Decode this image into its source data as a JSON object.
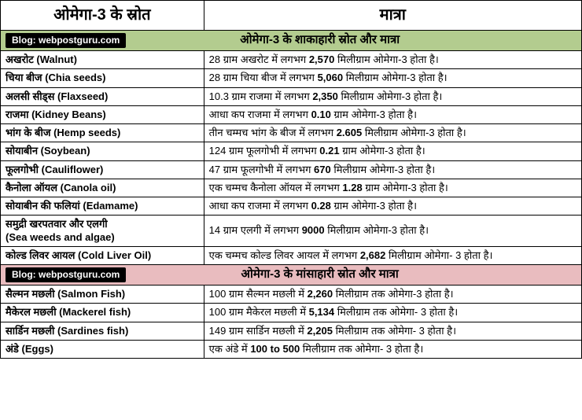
{
  "header": {
    "col1": "ओमेगा-3 के स्रोत",
    "col2": "मात्रा"
  },
  "blog_badge": "Blog: webpostguru.com",
  "section_veg": {
    "title": "ओमेगा-3 के शाकाहारी स्रोत और मात्रा",
    "bg_color": "#b3cc8f"
  },
  "section_nonveg": {
    "title": "ओमेगा-3 के मांसाहारी स्रोत और मात्रा",
    "bg_color": "#e9bcbf"
  },
  "veg_rows": [
    {
      "src": "अखरोट (Walnut)",
      "amt": "28 ग्राम अखरोट में लगभग <b>2,570</b> मिलीग्राम ओमेगा-3 होता है।"
    },
    {
      "src": "चिया बीज (Chia seeds)",
      "amt": "28 ग्राम चिया बीज में लगभग <b>5,060</b> मिलीग्राम ओमेगा-3 होता है।"
    },
    {
      "src": "अलसी सीड्स (Flaxseed)",
      "amt": "10.3 ग्राम राजमा में लगभग <b>2,350</b> मिलीग्राम ओमेगा-3 होता है।"
    },
    {
      "src": "राजमा (Kidney Beans)",
      "amt": "आधा कप राजमा में लगभग <b>0.10</b> ग्राम ओमेगा-3 होता है।"
    },
    {
      "src": "भांग के बीज (Hemp seeds)",
      "amt": "तीन चम्मच भांग के बीज में लगभग <b>2.605</b> मिलीग्राम ओमेगा-3 होता है।"
    },
    {
      "src": "सोयाबीन (Soybean)",
      "amt": "124 ग्राम फूलगोभी में लगभग <b>0.21</b> ग्राम ओमेगा-3 होता है।"
    },
    {
      "src": "फूलगोभी (Cauliflower)",
      "amt": "47 ग्राम फूलगोभी में लगभग <b>670</b> मिलीग्राम ओमेगा-3 होता है।"
    },
    {
      "src": "कैनोला ऑयल (Canola oil)",
      "amt": "एक चम्मच कैनोला ऑयल में लगभग <b>1.28</b> ग्राम ओमेगा-3 होता है।"
    },
    {
      "src": "सोयाबीन की फलियां (Edamame)",
      "amt": "आधा कप राजमा में लगभग <b>0.28</b> ग्राम ओमेगा-3 होता है।"
    },
    {
      "src": "समुद्री खरपतवार और एलगी<br>(Sea weeds and algae)",
      "amt": "14 ग्राम एलगी में लगभग <b>9000</b> मिलीग्राम ओमेगा-3 होता है।"
    },
    {
      "src": "कोल्ड लिवर आयल (Cold Liver Oil)",
      "amt": "एक चम्मच कोल्ड लिवर आयल में लगभग <b>2,682</b> मिलीग्राम ओमेगा- 3 होता है।"
    }
  ],
  "nonveg_rows": [
    {
      "src": "सैल्मन मछली (Salmon Fish)",
      "amt": "100 ग्राम सैल्मन मछली में <b>2,260</b> मिलीग्राम तक ओमेगा-3 होता है।"
    },
    {
      "src": "मैकेरल मछली (Mackerel fish)",
      "amt": "100 ग्राम मैकेरल मछली में <b>5,134</b> मिलीग्राम तक ओमेगा- 3 होता है।"
    },
    {
      "src": "सार्डिन मछली (Sardines fish)",
      "amt": "149 ग्राम सार्डिन मछली में <b>2,205</b> मिलीग्राम तक ओमेगा- 3 होता है।"
    },
    {
      "src": "अंडे (Eggs)",
      "amt": "एक अंडे में <b>100 to 500</b> मिलीग्राम तक ओमेगा- 3 होता है।"
    }
  ],
  "styling": {
    "border_color": "#000000",
    "header_fontsize": 20,
    "body_fontsize": 13,
    "section_fontsize": 15,
    "badge_bg": "#000000",
    "badge_fg": "#ffffff"
  }
}
